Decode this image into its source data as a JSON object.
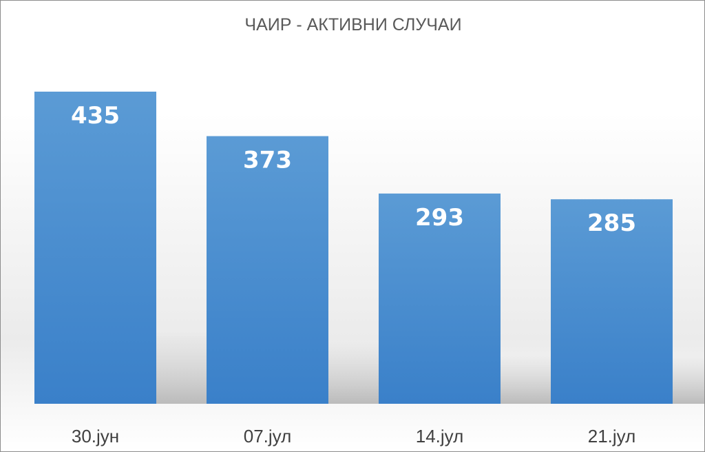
{
  "chart_data": {
    "type": "bar",
    "title": "ЧАИР - АКТИВНИ СЛУЧАИ",
    "categories": [
      "30.јун",
      "07.јул",
      "14.јул",
      "21.јул"
    ],
    "values": [
      435,
      373,
      293,
      285
    ],
    "ylim": [
      0,
      435
    ],
    "grid": false,
    "legend": "none",
    "data_labels": true,
    "colors": {
      "bar_top": "#5b9bd5",
      "bar_bottom": "#3a80c9",
      "value_label": "#ffffff",
      "title": "#595959",
      "tick_label": "#404040"
    }
  }
}
